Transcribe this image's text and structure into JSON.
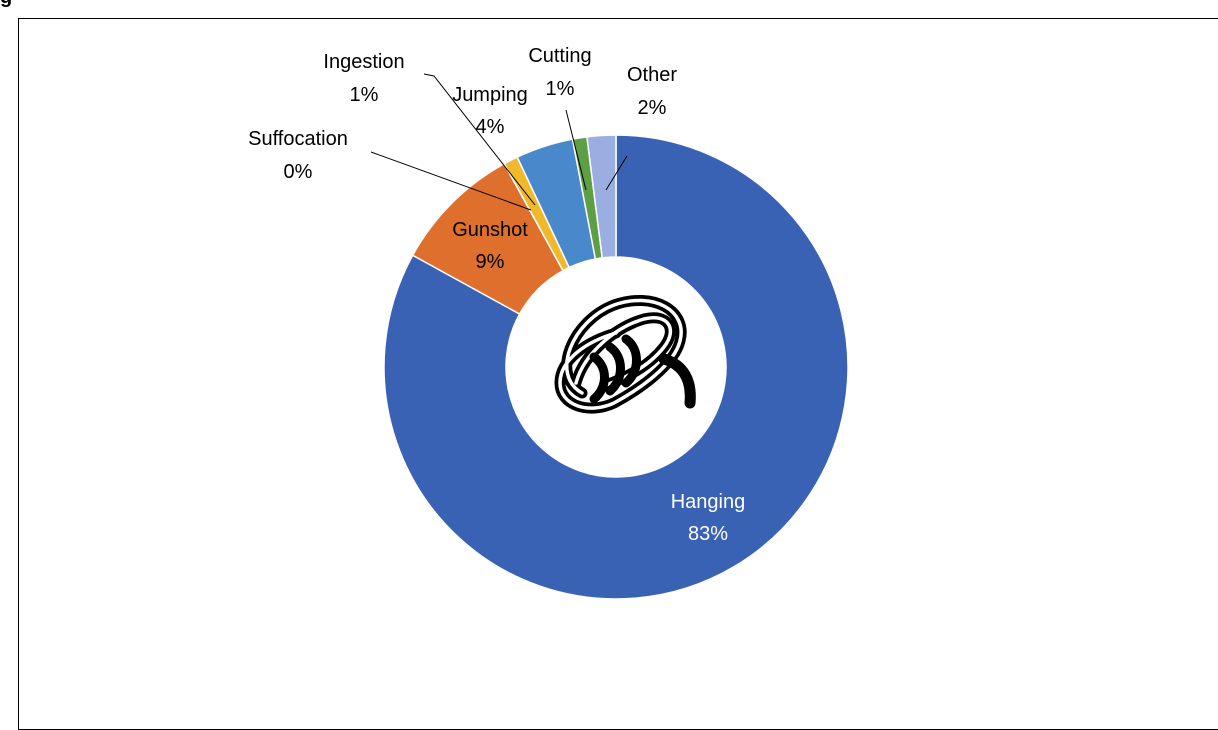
{
  "header_fragment": "g",
  "chart_data": {
    "type": "pie",
    "variant": "donut",
    "title": "",
    "unit": "%",
    "slices": [
      {
        "name": "Hanging",
        "value": 83,
        "label": "83%",
        "color": "#3a62b4"
      },
      {
        "name": "Gunshot",
        "value": 9,
        "label": "9%",
        "color": "#df6f2d"
      },
      {
        "name": "Suffocation",
        "value": 0,
        "label": "0%",
        "color": "#e8aa12"
      },
      {
        "name": "Ingestion",
        "value": 1,
        "label": "1%",
        "color": "#f0b92c"
      },
      {
        "name": "Jumping",
        "value": 4,
        "label": "4%",
        "color": "#4a88cc"
      },
      {
        "name": "Cutting",
        "value": 1,
        "label": "1%",
        "color": "#5e9e45"
      },
      {
        "name": "Other",
        "value": 2,
        "label": "2%",
        "color": "#9aaee2"
      }
    ],
    "center_icon": "rope-icon",
    "legend": "none"
  }
}
